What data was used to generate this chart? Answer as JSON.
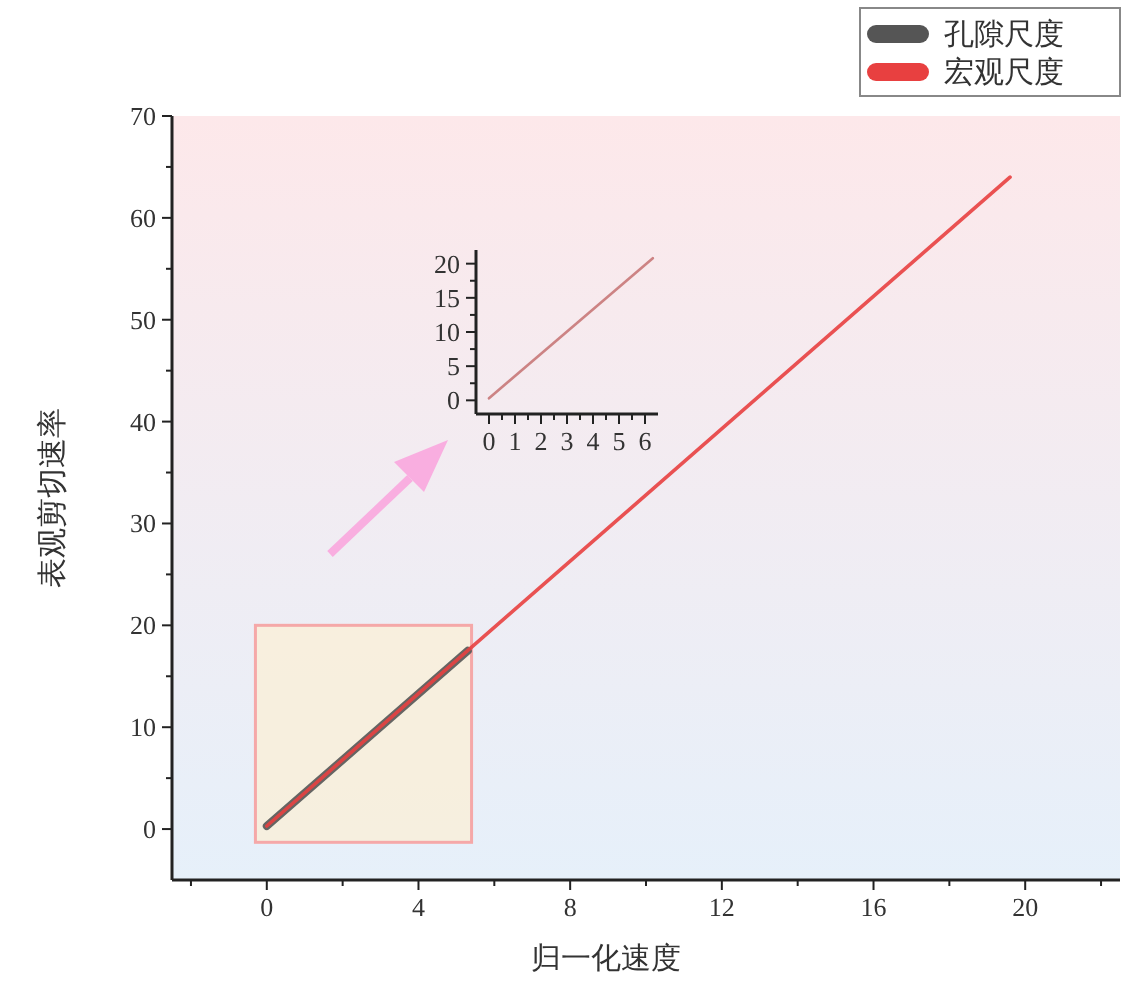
{
  "chart_data": [
    {
      "type": "line",
      "xlabel": "归一化速度",
      "ylabel": "表观剪切速率",
      "xlim": [
        -2.5,
        22.5
      ],
      "ylim": [
        -5,
        70
      ],
      "xticks": [
        {
          "value": -2,
          "label": null
        },
        0,
        {
          "value": 2,
          "label": null
        },
        4,
        {
          "value": 6,
          "label": null
        },
        8,
        {
          "value": 10,
          "label": null
        },
        12,
        {
          "value": 14,
          "label": null
        },
        16,
        {
          "value": 18,
          "label": null
        },
        20,
        {
          "value": 22,
          "label": null
        }
      ],
      "yticks": [
        0,
        {
          "value": 5,
          "label": null
        },
        10,
        {
          "value": 15,
          "label": null
        },
        20,
        {
          "value": 25,
          "label": null
        },
        30,
        {
          "value": 35,
          "label": null
        },
        40,
        {
          "value": 45,
          "label": null
        },
        50,
        {
          "value": 55,
          "label": null
        },
        60,
        {
          "value": 65,
          "label": null
        },
        70
      ],
      "series": [
        {
          "name": "孔隙尺度",
          "color": "#555555",
          "x": [
            0,
            5.3
          ],
          "values": [
            0.3,
            17.5
          ]
        },
        {
          "name": "宏观尺度",
          "color": "#e84040",
          "x": [
            0,
            19.6
          ],
          "values": [
            0.3,
            64
          ]
        }
      ],
      "legend": "top right",
      "grid": false,
      "marker": "none",
      "line_style": "solid"
    },
    {
      "type": "line",
      "xlim": [
        -0.5,
        6.5
      ],
      "ylim": [
        -2,
        22
      ],
      "xticks": [
        0,
        {
          "value": 0.5,
          "label": null
        },
        1,
        {
          "value": 1.5,
          "label": null
        },
        2,
        {
          "value": 2.5,
          "label": null
        },
        3,
        {
          "value": 3.5,
          "label": null
        },
        4,
        {
          "value": 4.5,
          "label": null
        },
        5,
        {
          "value": 5.5,
          "label": null
        },
        6
      ],
      "yticks": [
        0,
        {
          "value": 2.5,
          "label": null
        },
        5,
        {
          "value": 7.5,
          "label": null
        },
        10,
        {
          "value": 12.5,
          "label": null
        },
        15,
        {
          "value": 17.5,
          "label": null
        },
        20
      ],
      "series": [
        {
          "color": "#c87878",
          "x": [
            0,
            6.3
          ],
          "values": [
            0.3,
            20.8
          ]
        }
      ],
      "legend": false,
      "grid": false,
      "marker": "none",
      "line_style": "solid"
    }
  ]
}
